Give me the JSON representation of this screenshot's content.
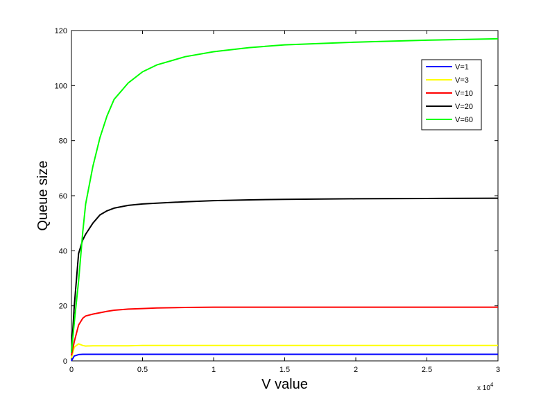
{
  "chart_data": {
    "type": "line",
    "title": "",
    "xlabel": "V value",
    "ylabel": "Queue size",
    "x_exponent_label": "x 10",
    "x_exponent_power": "4",
    "xlim": [
      0,
      3
    ],
    "ylim": [
      0,
      120
    ],
    "x_ticks": [
      0,
      0.5,
      1,
      1.5,
      2,
      2.5,
      3
    ],
    "x_tick_labels": [
      "0",
      "0.5",
      "1",
      "1.5",
      "2",
      "2.5",
      "3"
    ],
    "y_ticks": [
      0,
      20,
      40,
      60,
      80,
      100,
      120
    ],
    "y_tick_labels": [
      "0",
      "20",
      "40",
      "60",
      "80",
      "100",
      "120"
    ],
    "grid": false,
    "legend_position": "top-right",
    "x": [
      0,
      0.02,
      0.05,
      0.08,
      0.1,
      0.15,
      0.2,
      0.25,
      0.3,
      0.4,
      0.5,
      0.6,
      0.8,
      1.0,
      1.25,
      1.5,
      2.0,
      2.5,
      3.0
    ],
    "series": [
      {
        "name": "V=1",
        "color": "#0000ff",
        "values": [
          0,
          1.8,
          2.3,
          2.4,
          2.4,
          2.4,
          2.4,
          2.4,
          2.4,
          2.4,
          2.4,
          2.4,
          2.4,
          2.4,
          2.4,
          2.4,
          2.4,
          2.4,
          2.4
        ]
      },
      {
        "name": "V=3",
        "color": "#ffff00",
        "values": [
          1,
          5,
          6.2,
          5.6,
          5.4,
          5.5,
          5.5,
          5.5,
          5.5,
          5.5,
          5.6,
          5.6,
          5.6,
          5.6,
          5.6,
          5.6,
          5.6,
          5.6,
          5.6
        ]
      },
      {
        "name": "V=10",
        "color": "#ff0000",
        "values": [
          2,
          7,
          13,
          15.5,
          16.3,
          17,
          17.5,
          18,
          18.4,
          18.8,
          19,
          19.2,
          19.4,
          19.5,
          19.5,
          19.5,
          19.5,
          19.5,
          19.5
        ]
      },
      {
        "name": "V=20",
        "color": "#000000",
        "values": [
          3,
          20,
          39,
          44,
          46,
          50,
          53,
          54.5,
          55.5,
          56.5,
          57,
          57.3,
          57.8,
          58.2,
          58.5,
          58.7,
          58.9,
          59.0,
          59.1
        ]
      },
      {
        "name": "V=60",
        "color": "#00ff00",
        "values": [
          3,
          14,
          29,
          47,
          57,
          70.5,
          81,
          89,
          95,
          101,
          105,
          107.5,
          110.5,
          112.3,
          113.8,
          114.8,
          115.8,
          116.5,
          117
        ]
      }
    ]
  }
}
